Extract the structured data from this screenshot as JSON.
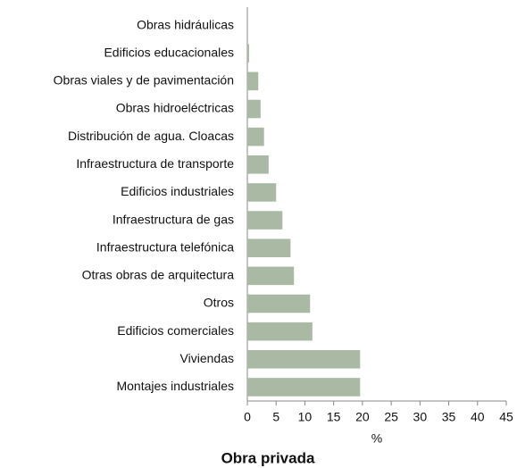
{
  "chart_data": {
    "type": "bar",
    "orientation": "horizontal",
    "title": "Obra privada",
    "x_label": "%",
    "categories": [
      "Obras hidráulicas",
      "Edificios educacionales",
      "Obras viales y de pavimentación",
      "Obras hidroeléctricas",
      "Distribución de agua. Cloacas",
      "Infraestructura de transporte",
      "Edificios industriales",
      "Infraestructura de gas",
      "Infraestructura telefónica",
      "Otras obras de arquitectura",
      "Otros",
      "Edificios comerciales",
      "Viviendas",
      "Montajes industriales"
    ],
    "values": [
      0,
      0.3,
      1.9,
      2.3,
      2.9,
      3.7,
      5.0,
      6.1,
      7.5,
      8.1,
      10.9,
      11.3,
      19.6,
      19.6
    ],
    "color": "#a9b9a4",
    "xlim": [
      0,
      45
    ],
    "xticks": [
      0,
      5,
      10,
      15,
      20,
      25,
      30,
      35,
      40,
      45
    ],
    "grid": false
  }
}
